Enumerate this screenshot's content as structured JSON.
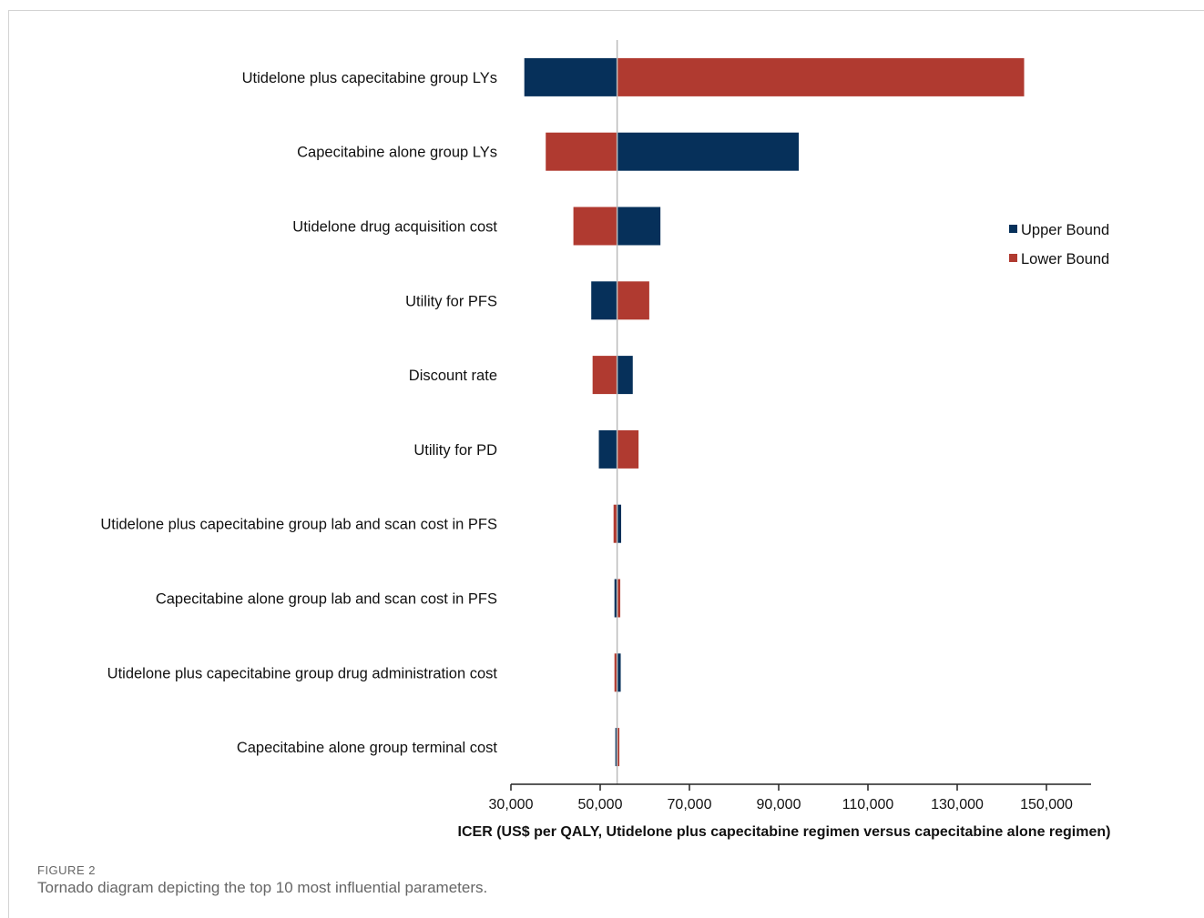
{
  "figure": {
    "label": "FIGURE 2",
    "caption": "Tornado diagram depicting the top 10 most influential parameters."
  },
  "chart_data": {
    "type": "bar",
    "orientation": "horizontal",
    "subtype": "tornado",
    "title": "",
    "xlabel": "ICER (US$ per QALY, Utidelone plus capecitabine regimen versus capecitabine alone regimen)",
    "ylabel": "",
    "xlim": [
      30000,
      160000
    ],
    "xticks": [
      30000,
      50000,
      70000,
      90000,
      110000,
      130000,
      150000
    ],
    "xtick_labels": [
      "30,000",
      "50,000",
      "70,000",
      "90,000",
      "110,000",
      "130,000",
      "150,000"
    ],
    "base_value": 53800,
    "grid": false,
    "legend": {
      "placement": "right",
      "entries": [
        "Upper Bound",
        "Lower Bound"
      ]
    },
    "colors": {
      "upper": "#06305a",
      "lower": "#b03a30",
      "baseline": "#bbbbbb"
    },
    "categories": [
      "Utidelone plus capecitabine group LYs",
      "Capecitabine alone group LYs",
      "Utidelone drug acquisition cost",
      "Utility for PFS",
      "Discount rate",
      "Utility for PD",
      "Utidelone plus capecitabine group lab and scan cost in PFS",
      "Capecitabine alone group lab and scan cost in PFS",
      "Utidelone plus capecitabine group drug administration cost",
      "Capecitabine alone group terminal cost"
    ],
    "series": [
      {
        "name": "Upper Bound",
        "values": [
          33000,
          94500,
          63500,
          48000,
          57300,
          49700,
          54700,
          53200,
          54600,
          53400
        ]
      },
      {
        "name": "Lower Bound",
        "values": [
          145000,
          37800,
          44000,
          61000,
          48300,
          58600,
          53000,
          54500,
          53200,
          54300
        ]
      }
    ]
  }
}
